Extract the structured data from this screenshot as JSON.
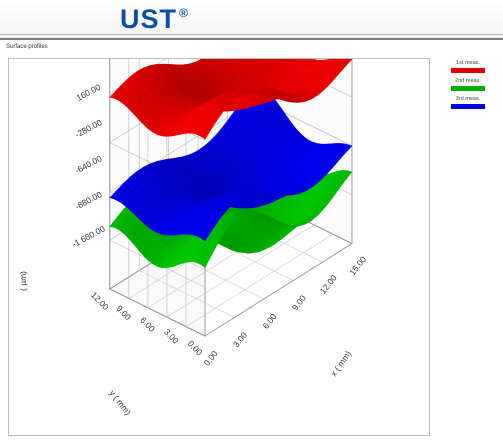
{
  "header": {
    "logo_text": "UST",
    "logo_mark": "®"
  },
  "panel_label": "Surface profiles",
  "colors": {
    "brand": "#0d4fa1",
    "series_1": "#e00000",
    "series_2": "#00b000",
    "series_3": "#0000e0"
  },
  "chart_data": {
    "type": "surface3d",
    "xlabel": "x ( mm)",
    "ylabel": "y ( mm)",
    "zlabel": "( µm)",
    "x_ticks": [
      "0.00",
      "3.00",
      "6.00",
      "9.00",
      "12.00",
      "15.00"
    ],
    "y_ticks": [
      "0.00",
      "3.00",
      "6.00",
      "9.00",
      "12.00"
    ],
    "z_ticks": [
      "-1 680.00",
      "-880.00",
      "-640.00",
      "-280.00",
      "160.00"
    ],
    "xlim": [
      0,
      15
    ],
    "ylim": [
      0,
      12
    ],
    "grid": true,
    "legend_position": "right",
    "series": [
      {
        "name": "1st meas.",
        "color": "#e00000",
        "base": -280,
        "amplitude": 220
      },
      {
        "name": "2nd meas.",
        "color": "#00b000",
        "base": -1300,
        "amplitude": 260
      },
      {
        "name": "3rd meas.",
        "color": "#0000e0",
        "base": -1050,
        "amplitude": 180
      }
    ]
  }
}
